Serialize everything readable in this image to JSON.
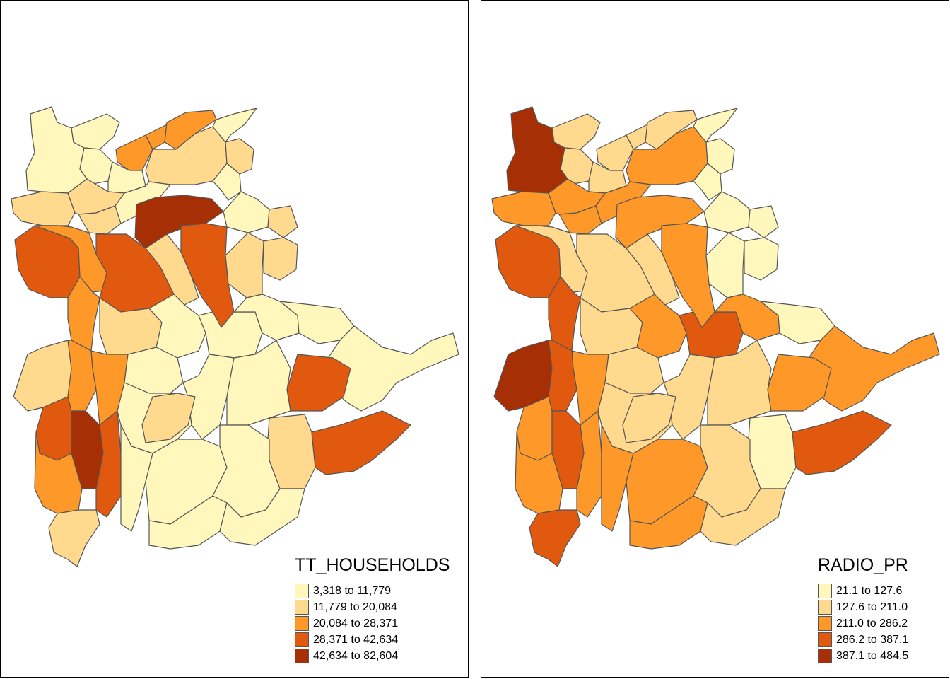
{
  "maps": [
    {
      "id": "left",
      "legend": {
        "title": "TT_HOUSEHOLDS",
        "classes": [
          {
            "label": "3,318 to 11,779",
            "color": "#FFF7BC"
          },
          {
            "label": "11,779 to 20,084",
            "color": "#FED98E"
          },
          {
            "label": "20,084 to 28,371",
            "color": "#FE9929"
          },
          {
            "label": "28,371 to 42,634",
            "color": "#E1580F"
          },
          {
            "label": "42,634 to 82,604",
            "color": "#A62F06"
          }
        ]
      }
    },
    {
      "id": "right",
      "legend": {
        "title": "RADIO_PR",
        "classes": [
          {
            "label": "21.1 to 127.6",
            "color": "#FFF7BC"
          },
          {
            "label": "127.6 to 211.0",
            "color": "#FED98E"
          },
          {
            "label": "211.0 to 286.2",
            "color": "#FE9929"
          },
          {
            "label": "286.2 to 387.1",
            "color": "#E1580F"
          },
          {
            "label": "387.1 to 484.5",
            "color": "#A62F06"
          }
        ]
      }
    }
  ]
}
